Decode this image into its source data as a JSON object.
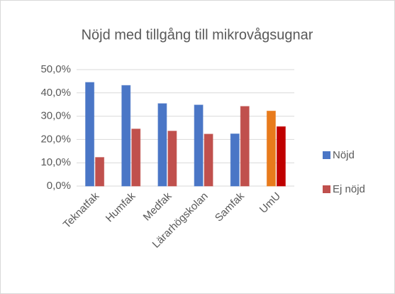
{
  "chart_data": {
    "type": "bar",
    "title": "Nöjd med tillgång till mikrovågsugnar",
    "categories": [
      "Teknatfak",
      "Humfak",
      "Medfak",
      "Lärarhögskolan",
      "Samfak",
      "UmU"
    ],
    "series": [
      {
        "name": "Nöjd",
        "color": "#4a76c6",
        "colors": [
          "#4a76c6",
          "#4a76c6",
          "#4a76c6",
          "#4a76c6",
          "#4a76c6",
          "#e87b1c"
        ],
        "values": [
          44.5,
          43.2,
          35.4,
          34.8,
          22.4,
          32.2
        ]
      },
      {
        "name": "Ej nöjd",
        "color": "#c0504d",
        "colors": [
          "#c0504d",
          "#c0504d",
          "#c0504d",
          "#c0504d",
          "#c0504d",
          "#c00000"
        ],
        "values": [
          12.3,
          24.5,
          23.6,
          22.3,
          34.2,
          25.5
        ]
      }
    ],
    "ylim": [
      0,
      50
    ],
    "yticks": [
      {
        "value": 0,
        "label": "0,0%"
      },
      {
        "value": 10,
        "label": "10,0%"
      },
      {
        "value": 20,
        "label": "20,0%"
      },
      {
        "value": 30,
        "label": "30,0%"
      },
      {
        "value": 40,
        "label": "40,0%"
      },
      {
        "value": 50,
        "label": "50,0%"
      }
    ],
    "grid": true,
    "legend": "right"
  }
}
